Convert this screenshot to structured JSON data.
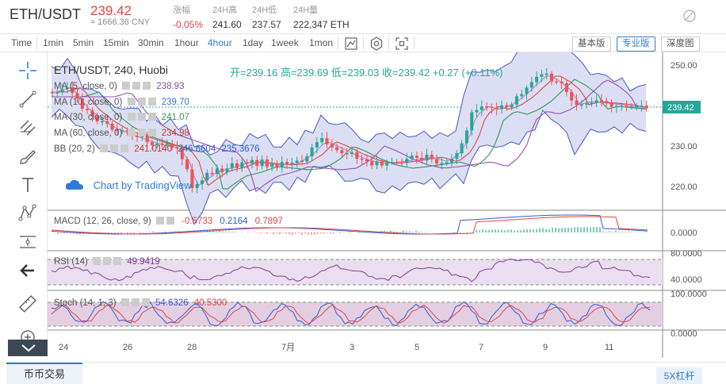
{
  "ticker": {
    "pair": "ETH/USDT",
    "last_price": "239.42",
    "cny_price": "≈ 1666.36 CNY",
    "stats": [
      {
        "label": "涨幅",
        "value": "-0.05%"
      },
      {
        "label": "24H高",
        "value": "241.60"
      },
      {
        "label": "24H低",
        "value": "237.57"
      },
      {
        "label": "24H量",
        "value": "222,347 ETH"
      }
    ]
  },
  "toolbar": {
    "timeframes": [
      "Time",
      "1min",
      "5min",
      "15min",
      "30min",
      "1hour",
      "4hour",
      "1day",
      "1week",
      "1mon"
    ],
    "active_timeframe": "4hour",
    "versions": [
      "基本版",
      "专业版",
      "深度图"
    ],
    "active_version": "专业版"
  },
  "legend": {
    "header": "ETH/USDT, 240, Huobi",
    "ohlc": "开=239.16  高=239.69  低=239.03  收=239.42  +0.27 (+0.11%)",
    "ma5": {
      "name": "MA (5, close, 0)",
      "value": "238.93"
    },
    "ma10": {
      "name": "MA (10, close, 0)",
      "value": "239.70"
    },
    "ma30": {
      "name": "MA (30, close, 0)",
      "value": "241.07"
    },
    "ma60": {
      "name": "MA (60, close, 0)",
      "value": "234.98"
    },
    "bb": {
      "name": "BB (20, 2)",
      "v1": "241.0140",
      "v2": "246.6604",
      "v3": "235.3676"
    },
    "watermark": "Chart by TradingView",
    "macd": {
      "name": "MACD (12, 26, close, 9)",
      "v1": "-0.5733",
      "v2": "0.2164",
      "v3": "0.7897"
    },
    "rsi": {
      "name": "RSI (14)",
      "value": "49.9419"
    },
    "stoch": {
      "name": "Stoch (14, 1, 3)",
      "v1": "54.6326",
      "v2": "40.5300"
    }
  },
  "price_axis": {
    "labels": [
      "250.00",
      "240.00",
      "230.00",
      "220.00"
    ],
    "current": "239.42",
    "macd_labels": [
      "0.0000"
    ],
    "rsi_labels": [
      "80.0000",
      "40.0000"
    ],
    "stoch_labels": [
      "100.0000",
      "0.0000"
    ]
  },
  "time_axis": [
    "24",
    "26",
    "28",
    "7月",
    "3",
    "5",
    "7",
    "9",
    "11"
  ],
  "colors": {
    "up": "#26a69a",
    "down": "#ef5350",
    "accent": "#2f7bd6"
  },
  "bottom": {
    "tab": "币币交易",
    "leverage": "5X杠杆"
  }
}
